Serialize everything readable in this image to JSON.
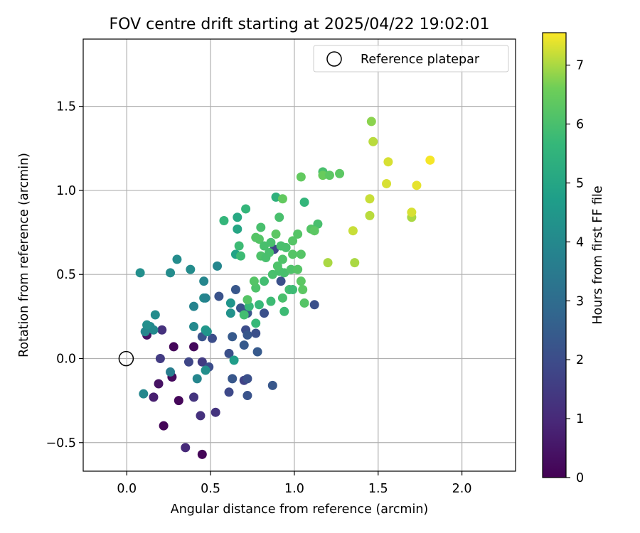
{
  "chart_data": {
    "type": "scatter",
    "title": "FOV centre drift starting at 2025/04/22 19:02:01",
    "xlabel": "Angular distance from reference (arcmin)",
    "ylabel": "Rotation from reference (arcmin)",
    "xlim": [
      -0.26,
      2.32
    ],
    "ylim": [
      -0.67,
      1.9
    ],
    "xticks": [
      0.0,
      0.5,
      1.0,
      1.5,
      2.0
    ],
    "xtick_labels": [
      "0.0",
      "0.5",
      "1.0",
      "1.5",
      "2.0"
    ],
    "yticks": [
      -0.5,
      0.0,
      0.5,
      1.0,
      1.5
    ],
    "ytick_labels": [
      "−0.5",
      "0.0",
      "0.5",
      "1.0",
      "1.5"
    ],
    "grid": true,
    "legend": {
      "position": "top-right",
      "entries": [
        "Reference platepar"
      ]
    },
    "reference_point": {
      "x": 0.0,
      "y": 0.0,
      "marker": "open-circle"
    },
    "colorbar": {
      "label": "Hours from first FF file",
      "range": [
        0,
        7.55
      ],
      "ticks": [
        0,
        1,
        2,
        3,
        4,
        5,
        6,
        7
      ],
      "tick_labels": [
        "0",
        "1",
        "2",
        "3",
        "4",
        "5",
        "6",
        "7"
      ],
      "colormap": "viridis"
    },
    "points": [
      {
        "x": 0.45,
        "y": -0.57,
        "c": 0.1
      },
      {
        "x": 0.22,
        "y": -0.4,
        "c": 0.1
      },
      {
        "x": 0.31,
        "y": -0.25,
        "c": 0.15
      },
      {
        "x": 0.27,
        "y": -0.11,
        "c": 0.2
      },
      {
        "x": 0.28,
        "y": 0.07,
        "c": 0.15
      },
      {
        "x": 0.4,
        "y": 0.07,
        "c": 0.2
      },
      {
        "x": 0.12,
        "y": 0.14,
        "c": 0.4
      },
      {
        "x": 0.19,
        "y": -0.15,
        "c": 0.4
      },
      {
        "x": 0.35,
        "y": -0.53,
        "c": 1.0
      },
      {
        "x": 0.16,
        "y": -0.23,
        "c": 0.7
      },
      {
        "x": 0.44,
        "y": -0.34,
        "c": 1.2
      },
      {
        "x": 0.53,
        "y": -0.32,
        "c": 1.3
      },
      {
        "x": 0.4,
        "y": -0.23,
        "c": 1.3
      },
      {
        "x": 0.2,
        "y": 0.0,
        "c": 1.5
      },
      {
        "x": 0.21,
        "y": 0.17,
        "c": 1.2
      },
      {
        "x": 0.45,
        "y": -0.02,
        "c": 1.5
      },
      {
        "x": 0.37,
        "y": -0.02,
        "c": 1.8
      },
      {
        "x": 0.49,
        "y": -0.05,
        "c": 2.0
      },
      {
        "x": 0.45,
        "y": 0.13,
        "c": 2.2
      },
      {
        "x": 0.51,
        "y": 0.12,
        "c": 2.0
      },
      {
        "x": 0.61,
        "y": -0.2,
        "c": 1.9
      },
      {
        "x": 0.7,
        "y": -0.13,
        "c": 1.7
      },
      {
        "x": 0.72,
        "y": -0.12,
        "c": 2.1
      },
      {
        "x": 0.72,
        "y": -0.22,
        "c": 2.2
      },
      {
        "x": 0.63,
        "y": -0.12,
        "c": 2.3
      },
      {
        "x": 0.61,
        "y": 0.03,
        "c": 2.1
      },
      {
        "x": 0.63,
        "y": 0.13,
        "c": 2.4
      },
      {
        "x": 0.7,
        "y": 0.08,
        "c": 2.4
      },
      {
        "x": 0.71,
        "y": 0.17,
        "c": 2.0
      },
      {
        "x": 0.72,
        "y": 0.14,
        "c": 2.3
      },
      {
        "x": 0.77,
        "y": 0.15,
        "c": 2.1
      },
      {
        "x": 0.78,
        "y": 0.04,
        "c": 2.4
      },
      {
        "x": 0.87,
        "y": -0.16,
        "c": 2.3
      },
      {
        "x": 0.65,
        "y": 0.41,
        "c": 2.3
      },
      {
        "x": 0.55,
        "y": 0.37,
        "c": 2.2
      },
      {
        "x": 0.68,
        "y": 0.3,
        "c": 2.2
      },
      {
        "x": 0.72,
        "y": 0.27,
        "c": 2.3
      },
      {
        "x": 0.82,
        "y": 0.27,
        "c": 2.1
      },
      {
        "x": 0.92,
        "y": 0.46,
        "c": 2.1
      },
      {
        "x": 0.88,
        "y": 0.65,
        "c": 1.8
      },
      {
        "x": 1.12,
        "y": 0.32,
        "c": 2.1
      },
      {
        "x": 0.26,
        "y": -0.08,
        "c": 3.6
      },
      {
        "x": 0.1,
        "y": -0.21,
        "c": 3.9
      },
      {
        "x": 0.42,
        "y": -0.12,
        "c": 3.9
      },
      {
        "x": 0.47,
        "y": -0.07,
        "c": 4.2
      },
      {
        "x": 0.11,
        "y": 0.16,
        "c": 3.9
      },
      {
        "x": 0.14,
        "y": 0.19,
        "c": 4.0
      },
      {
        "x": 0.16,
        "y": 0.17,
        "c": 4.0
      },
      {
        "x": 0.12,
        "y": 0.2,
        "c": 4.2
      },
      {
        "x": 0.17,
        "y": 0.26,
        "c": 4.1
      },
      {
        "x": 0.4,
        "y": 0.19,
        "c": 4.0
      },
      {
        "x": 0.4,
        "y": 0.31,
        "c": 3.8
      },
      {
        "x": 0.46,
        "y": 0.36,
        "c": 4.1
      },
      {
        "x": 0.47,
        "y": 0.36,
        "c": 3.8
      },
      {
        "x": 0.46,
        "y": 0.46,
        "c": 3.9
      },
      {
        "x": 0.38,
        "y": 0.53,
        "c": 4.1
      },
      {
        "x": 0.26,
        "y": 0.51,
        "c": 4.1
      },
      {
        "x": 0.08,
        "y": 0.51,
        "c": 4.2
      },
      {
        "x": 0.3,
        "y": 0.59,
        "c": 4.1
      },
      {
        "x": 0.54,
        "y": 0.55,
        "c": 3.9
      },
      {
        "x": 0.62,
        "y": 0.27,
        "c": 4.3
      },
      {
        "x": 0.62,
        "y": 0.33,
        "c": 4.4
      },
      {
        "x": 0.47,
        "y": 0.17,
        "c": 4.5
      },
      {
        "x": 0.48,
        "y": 0.16,
        "c": 4.4
      },
      {
        "x": 0.64,
        "y": -0.01,
        "c": 4.7
      },
      {
        "x": 0.65,
        "y": 0.62,
        "c": 4.9
      },
      {
        "x": 0.66,
        "y": 0.77,
        "c": 5.0
      },
      {
        "x": 0.66,
        "y": 0.84,
        "c": 5.1
      },
      {
        "x": 0.58,
        "y": 0.82,
        "c": 5.6
      },
      {
        "x": 0.71,
        "y": 0.89,
        "c": 5.6
      },
      {
        "x": 0.89,
        "y": 0.96,
        "c": 5.4
      },
      {
        "x": 0.67,
        "y": 0.67,
        "c": 5.8
      },
      {
        "x": 0.68,
        "y": 0.61,
        "c": 5.8
      },
      {
        "x": 0.7,
        "y": 0.26,
        "c": 5.9
      },
      {
        "x": 0.73,
        "y": 0.31,
        "c": 5.7
      },
      {
        "x": 0.77,
        "y": 0.21,
        "c": 5.7
      },
      {
        "x": 0.79,
        "y": 0.32,
        "c": 5.7
      },
      {
        "x": 0.86,
        "y": 0.34,
        "c": 5.8
      },
      {
        "x": 0.94,
        "y": 0.28,
        "c": 5.8
      },
      {
        "x": 0.93,
        "y": 0.36,
        "c": 6.0
      },
      {
        "x": 0.97,
        "y": 0.41,
        "c": 5.9
      },
      {
        "x": 0.99,
        "y": 0.41,
        "c": 5.8
      },
      {
        "x": 0.82,
        "y": 0.46,
        "c": 5.9
      },
      {
        "x": 0.77,
        "y": 0.42,
        "c": 6.1
      },
      {
        "x": 0.76,
        "y": 0.46,
        "c": 6.2
      },
      {
        "x": 0.72,
        "y": 0.35,
        "c": 6.2
      },
      {
        "x": 0.87,
        "y": 0.5,
        "c": 6.0
      },
      {
        "x": 0.91,
        "y": 0.52,
        "c": 6.0
      },
      {
        "x": 0.94,
        "y": 0.51,
        "c": 6.0
      },
      {
        "x": 0.9,
        "y": 0.55,
        "c": 6.1
      },
      {
        "x": 0.93,
        "y": 0.59,
        "c": 6.1
      },
      {
        "x": 0.98,
        "y": 0.53,
        "c": 6.1
      },
      {
        "x": 0.99,
        "y": 0.62,
        "c": 6.2
      },
      {
        "x": 1.02,
        "y": 0.53,
        "c": 6.2
      },
      {
        "x": 1.04,
        "y": 0.62,
        "c": 6.2
      },
      {
        "x": 1.04,
        "y": 0.46,
        "c": 6.3
      },
      {
        "x": 1.05,
        "y": 0.41,
        "c": 6.3
      },
      {
        "x": 1.06,
        "y": 0.33,
        "c": 6.2
      },
      {
        "x": 0.8,
        "y": 0.61,
        "c": 6.1
      },
      {
        "x": 0.83,
        "y": 0.6,
        "c": 6.0
      },
      {
        "x": 0.85,
        "y": 0.63,
        "c": 6.0
      },
      {
        "x": 0.79,
        "y": 0.71,
        "c": 6.2
      },
      {
        "x": 0.77,
        "y": 0.72,
        "c": 6.2
      },
      {
        "x": 0.82,
        "y": 0.67,
        "c": 6.0
      },
      {
        "x": 0.86,
        "y": 0.69,
        "c": 6.0
      },
      {
        "x": 0.89,
        "y": 0.74,
        "c": 6.3
      },
      {
        "x": 0.92,
        "y": 0.67,
        "c": 6.0
      },
      {
        "x": 0.95,
        "y": 0.66,
        "c": 6.0
      },
      {
        "x": 0.99,
        "y": 0.7,
        "c": 6.2
      },
      {
        "x": 1.02,
        "y": 0.74,
        "c": 6.2
      },
      {
        "x": 0.8,
        "y": 0.78,
        "c": 6.0
      },
      {
        "x": 0.91,
        "y": 0.84,
        "c": 6.0
      },
      {
        "x": 1.06,
        "y": 0.93,
        "c": 5.6
      },
      {
        "x": 0.93,
        "y": 0.95,
        "c": 6.4
      },
      {
        "x": 1.04,
        "y": 1.08,
        "c": 6.4
      },
      {
        "x": 1.1,
        "y": 0.77,
        "c": 6.2
      },
      {
        "x": 1.14,
        "y": 0.8,
        "c": 6.0
      },
      {
        "x": 1.12,
        "y": 0.76,
        "c": 6.3
      },
      {
        "x": 1.17,
        "y": 1.11,
        "c": 6.0
      },
      {
        "x": 1.17,
        "y": 1.09,
        "c": 6.5
      },
      {
        "x": 1.21,
        "y": 1.09,
        "c": 6.3
      },
      {
        "x": 1.27,
        "y": 1.1,
        "c": 6.3
      },
      {
        "x": 1.2,
        "y": 0.57,
        "c": 7.0
      },
      {
        "x": 1.36,
        "y": 0.57,
        "c": 7.0
      },
      {
        "x": 1.35,
        "y": 0.76,
        "c": 7.2
      },
      {
        "x": 1.45,
        "y": 0.85,
        "c": 7.1
      },
      {
        "x": 1.45,
        "y": 0.95,
        "c": 7.2
      },
      {
        "x": 1.46,
        "y": 1.41,
        "c": 6.8
      },
      {
        "x": 1.47,
        "y": 1.29,
        "c": 7.1
      },
      {
        "x": 1.55,
        "y": 1.04,
        "c": 7.3
      },
      {
        "x": 1.56,
        "y": 1.17,
        "c": 7.3
      },
      {
        "x": 1.7,
        "y": 0.84,
        "c": 7.0
      },
      {
        "x": 1.7,
        "y": 0.87,
        "c": 7.3
      },
      {
        "x": 1.73,
        "y": 1.03,
        "c": 7.4
      },
      {
        "x": 1.81,
        "y": 1.18,
        "c": 7.5
      }
    ]
  }
}
